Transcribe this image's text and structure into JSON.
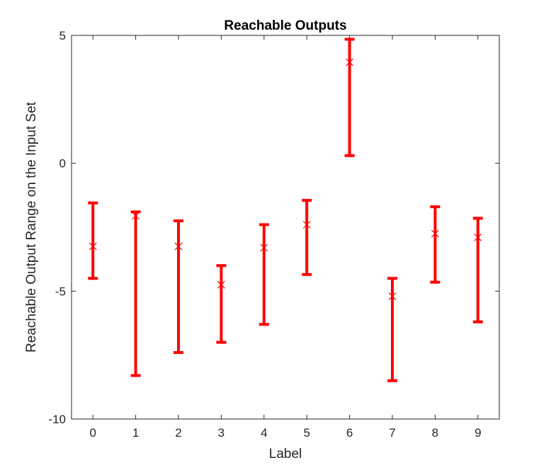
{
  "chart_data": {
    "type": "errorbar",
    "title": "Reachable Outputs",
    "xlabel": "Label",
    "ylabel": "Reachable Output Range on the Input Set",
    "xlim": [
      -0.5,
      9.5
    ],
    "ylim": [
      -10,
      5
    ],
    "xticks": [
      "0",
      "1",
      "2",
      "3",
      "4",
      "5",
      "6",
      "7",
      "8",
      "9"
    ],
    "yticks": [
      {
        "value": 5,
        "label": "5"
      },
      {
        "value": 0,
        "label": "0"
      },
      {
        "value": -5,
        "label": "-5"
      },
      {
        "value": -10,
        "label": "-10"
      }
    ],
    "grid": false,
    "color": "#ff0000",
    "series": [
      {
        "x": [
          0,
          1,
          2,
          3,
          4,
          5,
          6,
          7,
          8,
          9
        ],
        "lower": [
          -4.5,
          -8.3,
          -7.4,
          -7.0,
          -6.3,
          -4.35,
          0.3,
          -8.5,
          -4.65,
          -6.2
        ],
        "upper": [
          -1.55,
          -1.9,
          -2.25,
          -4.0,
          -2.4,
          -1.45,
          4.85,
          -4.5,
          -1.7,
          -2.15
        ],
        "marker": [
          -3.25,
          -2.05,
          -3.25,
          -4.75,
          -3.3,
          -2.4,
          3.95,
          -5.2,
          -2.75,
          -2.9
        ]
      }
    ]
  }
}
